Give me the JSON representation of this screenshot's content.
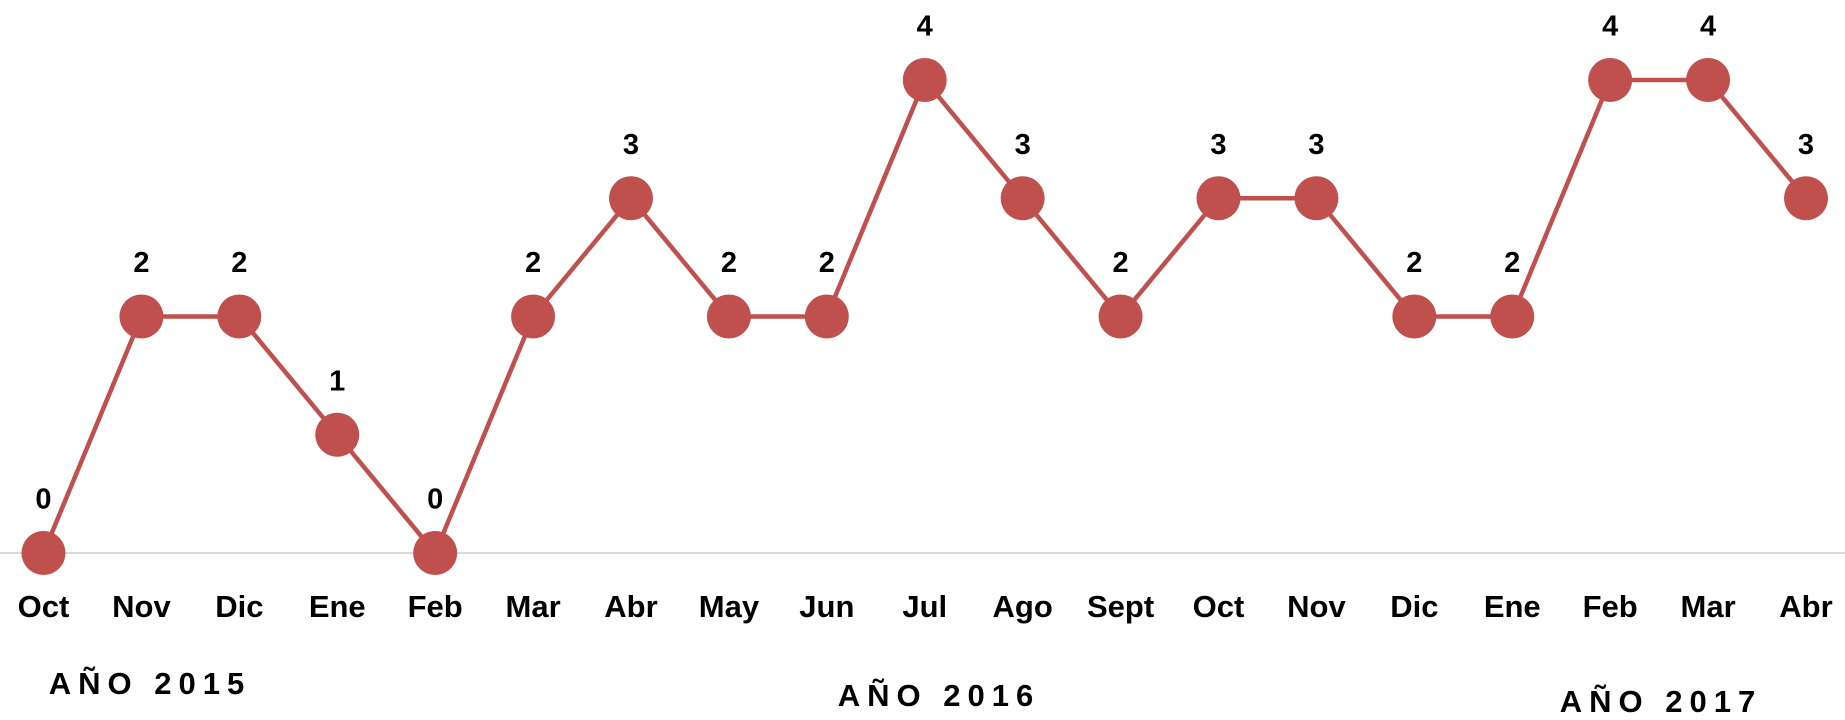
{
  "chart_data": {
    "type": "line",
    "categories": [
      "Oct",
      "Nov",
      "Dic",
      "Ene",
      "Feb",
      "Mar",
      "Abr",
      "May",
      "Jun",
      "Jul",
      "Ago",
      "Sept",
      "Oct",
      "Nov",
      "Dic",
      "Ene",
      "Feb",
      "Mar",
      "Abr"
    ],
    "values": [
      0,
      2,
      2,
      1,
      0,
      2,
      3,
      2,
      2,
      4,
      3,
      2,
      3,
      3,
      2,
      2,
      4,
      4,
      3
    ],
    "color": "#c0504d",
    "ylim": [
      0,
      4
    ],
    "annotations": [
      "AÑO 2015",
      "AÑO 2016",
      "AÑO 2017"
    ]
  }
}
